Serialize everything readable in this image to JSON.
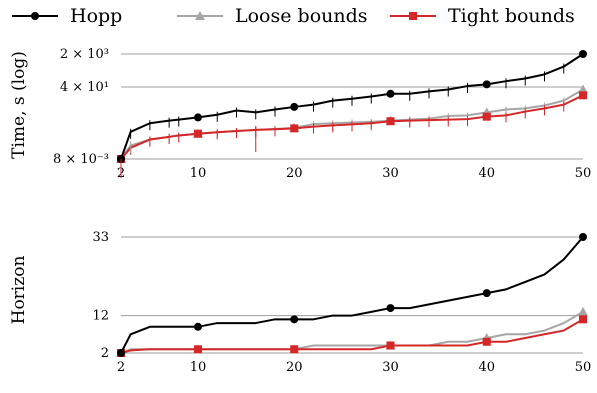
{
  "chart_data": [
    {
      "type": "line",
      "ylabel": "Time, s (log)",
      "yscale": "log",
      "grid": true,
      "legend_position": "top",
      "x": [
        2,
        3,
        5,
        7,
        8,
        10,
        12,
        14,
        16,
        18,
        20,
        22,
        24,
        26,
        28,
        30,
        32,
        34,
        36,
        38,
        40,
        42,
        44,
        46,
        48,
        50
      ],
      "xticks": [
        "2",
        "10",
        "20",
        "30",
        "40",
        "50"
      ],
      "yticks": [
        {
          "value": 0.008,
          "label": "8 × 10⁻³"
        },
        {
          "value": 40,
          "label": "4 × 10¹"
        },
        {
          "value": 2000,
          "label": "2 × 10³"
        }
      ],
      "ylim": [
        0.008,
        2000
      ],
      "series": [
        {
          "name": "Hopp",
          "color": "#000000",
          "marker": "circle",
          "values": [
            0.008,
            0.2,
            0.55,
            0.75,
            0.85,
            1.1,
            1.5,
            2.5,
            2.0,
            2.8,
            3.8,
            5.0,
            8.0,
            10.0,
            13.0,
            18.0,
            18.0,
            24.0,
            30.0,
            45.0,
            55.0,
            80.0,
            110.0,
            180.0,
            450.0,
            2000.0
          ]
        },
        {
          "name": "Loose bounds",
          "color": "#a6a6a6",
          "marker": "triangle",
          "values": [
            0.008,
            0.04,
            0.08,
            0.11,
            0.13,
            0.16,
            0.19,
            0.22,
            0.25,
            0.28,
            0.32,
            0.5,
            0.55,
            0.6,
            0.65,
            0.75,
            0.85,
            0.95,
            1.3,
            1.4,
            2.0,
            2.8,
            3.2,
            4.5,
            8.0,
            30.0
          ]
        },
        {
          "name": "Tight bounds",
          "color": "#d62728",
          "marker": "square",
          "values": [
            0.008,
            0.03,
            0.08,
            0.11,
            0.13,
            0.16,
            0.19,
            0.22,
            0.25,
            0.27,
            0.3,
            0.37,
            0.43,
            0.48,
            0.55,
            0.7,
            0.75,
            0.8,
            0.85,
            0.9,
            1.2,
            1.4,
            2.2,
            3.2,
            5.0,
            15.0
          ]
        }
      ]
    },
    {
      "type": "line",
      "ylabel": "Horizon",
      "grid": true,
      "x": [
        2,
        3,
        5,
        7,
        8,
        10,
        12,
        14,
        16,
        18,
        20,
        22,
        24,
        26,
        28,
        30,
        32,
        34,
        36,
        38,
        40,
        42,
        44,
        46,
        48,
        50
      ],
      "xticks": [
        "2",
        "10",
        "20",
        "30",
        "40",
        "50"
      ],
      "yticks": [
        {
          "value": 2,
          "label": "2"
        },
        {
          "value": 12,
          "label": "12"
        },
        {
          "value": 33,
          "label": "33"
        }
      ],
      "ylim": [
        2,
        33
      ],
      "series": [
        {
          "name": "Hopp",
          "color": "#000000",
          "marker": "circle",
          "values": [
            2,
            7,
            9,
            9,
            9,
            9,
            10,
            10,
            10,
            11,
            11,
            11,
            12,
            12,
            13,
            14,
            14,
            15,
            16,
            17,
            18,
            19,
            21,
            23,
            27,
            33
          ]
        },
        {
          "name": "Loose bounds",
          "color": "#a6a6a6",
          "marker": "triangle",
          "values": [
            2,
            3,
            3,
            3,
            3,
            3,
            3,
            3,
            3,
            3,
            3,
            4,
            4,
            4,
            4,
            4,
            4,
            4,
            5,
            5,
            6,
            7,
            7,
            8,
            10,
            13
          ]
        },
        {
          "name": "Tight bounds",
          "color": "#d62728",
          "marker": "square",
          "values": [
            2,
            2.7,
            3,
            3,
            3,
            3,
            3,
            3,
            3,
            3,
            3,
            3,
            3,
            3,
            3,
            4,
            4,
            4,
            4,
            4,
            5,
            5,
            6,
            7,
            8,
            11
          ]
        }
      ]
    }
  ]
}
